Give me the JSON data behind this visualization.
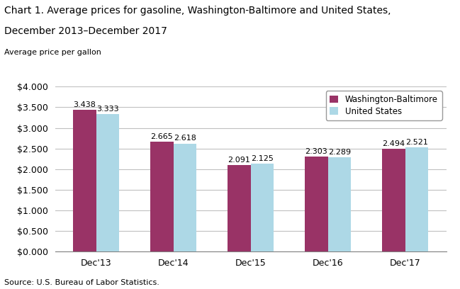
{
  "title_line1": "Chart 1. Average prices for gasoline, Washington-Baltimore and United States,",
  "title_line2": "December 2013–December 2017",
  "ylabel": "Average price per gallon",
  "source": "Source: U.S. Bureau of Labor Statistics.",
  "categories": [
    "Dec'13",
    "Dec'14",
    "Dec'15",
    "Dec'16",
    "Dec'17"
  ],
  "washington_baltimore": [
    3.438,
    2.665,
    2.091,
    2.303,
    2.494
  ],
  "united_states": [
    3.333,
    2.618,
    2.125,
    2.289,
    2.521
  ],
  "wb_color": "#993366",
  "us_color": "#add8e6",
  "wb_label": "Washington-Baltimore",
  "us_label": "United States",
  "ylim": [
    0.0,
    4.0
  ],
  "yticks": [
    0.0,
    0.5,
    1.0,
    1.5,
    2.0,
    2.5,
    3.0,
    3.5,
    4.0
  ],
  "bar_width": 0.3,
  "title_fontsize": 10,
  "axis_label_fontsize": 8,
  "tick_fontsize": 9,
  "annotation_fontsize": 8,
  "legend_fontsize": 8.5,
  "background_color": "#ffffff",
  "grid_color": "#c0c0c0"
}
